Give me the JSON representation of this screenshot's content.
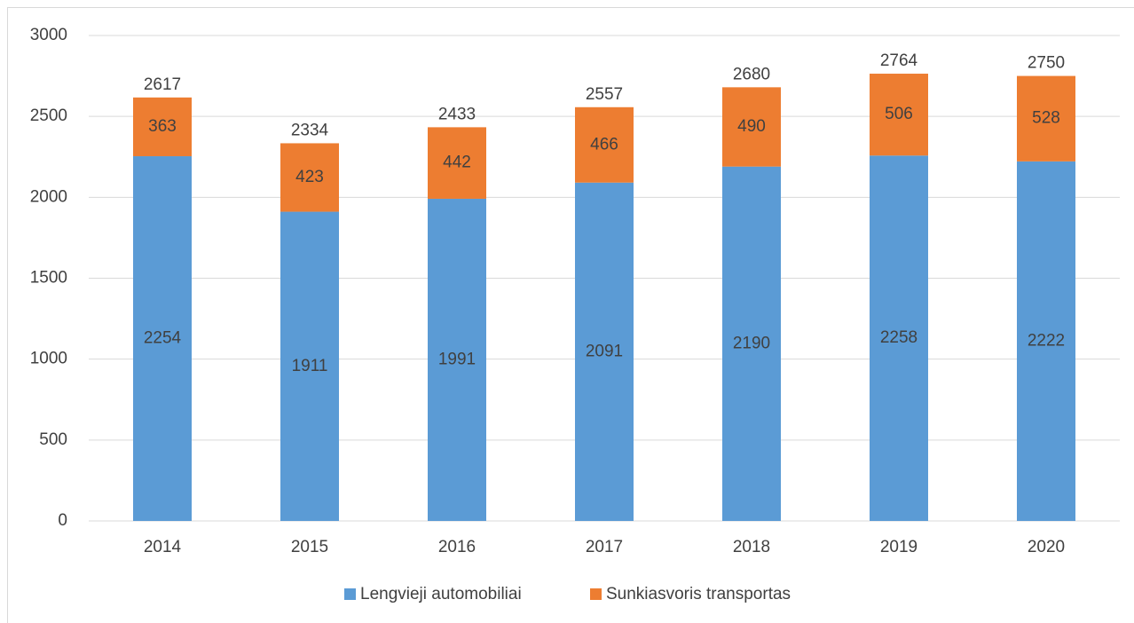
{
  "chart_data": {
    "type": "stacked_bar",
    "categories": [
      "2014",
      "2015",
      "2016",
      "2017",
      "2018",
      "2019",
      "2020"
    ],
    "series": [
      {
        "name": "Lengvieji automobiliai",
        "color": "#5b9bd5",
        "values": [
          2254,
          1911,
          1991,
          2091,
          2190,
          2258,
          2222
        ]
      },
      {
        "name": "Sunkiasvoris transportas",
        "color": "#ed7d31",
        "values": [
          363,
          423,
          442,
          466,
          490,
          506,
          528
        ]
      }
    ],
    "totals": [
      2617,
      2334,
      2433,
      2557,
      2680,
      2764,
      2750
    ],
    "ylim": [
      0,
      3000
    ],
    "yticks": [
      0,
      500,
      1000,
      1500,
      2000,
      2500,
      3000
    ],
    "grid": true,
    "legend": "bottom"
  }
}
